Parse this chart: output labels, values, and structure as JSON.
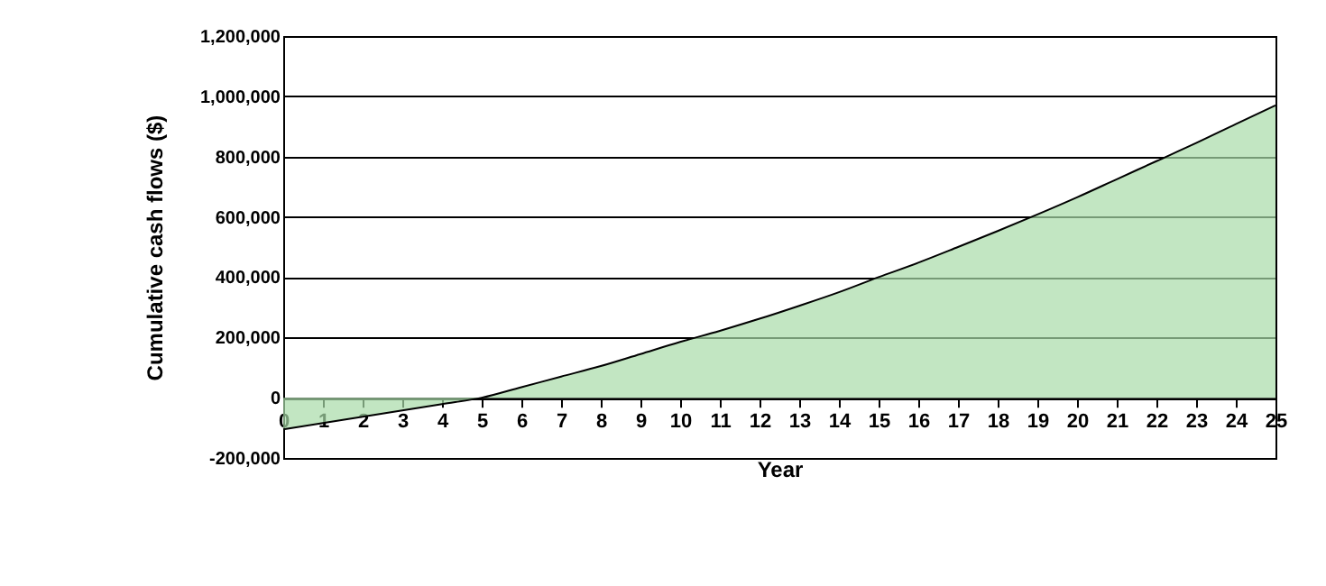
{
  "chart_data": {
    "type": "area",
    "xlabel": "Year",
    "ylabel": "Cumulative cash flows ($)",
    "x": [
      0,
      1,
      2,
      3,
      4,
      5,
      6,
      7,
      8,
      9,
      10,
      11,
      12,
      13,
      14,
      15,
      16,
      17,
      18,
      19,
      20,
      21,
      22,
      23,
      24,
      25
    ],
    "series": [
      {
        "color": "#a8dca8",
        "values": [
          -105000,
          -84000,
          -63000,
          -42000,
          -21000,
          0,
          35000,
          70000,
          105000,
          145000,
          185000,
          222000,
          262000,
          305000,
          350000,
          400000,
          448000,
          500000,
          553000,
          608000,
          665000,
          725000,
          785000,
          845000,
          908000,
          970000
        ]
      }
    ],
    "xlim": [
      0,
      25
    ],
    "xticks": [
      0,
      1,
      2,
      3,
      4,
      5,
      6,
      7,
      8,
      9,
      10,
      11,
      12,
      13,
      14,
      15,
      16,
      17,
      18,
      19,
      20,
      21,
      22,
      23,
      24,
      25
    ],
    "ylim": [
      -200000,
      1200000
    ],
    "yticks": [
      {
        "value": -200000,
        "label": "-200,000"
      },
      0,
      {
        "value": 200000,
        "label": "200,000"
      },
      {
        "value": 400000,
        "label": "400,000"
      },
      {
        "value": 600000,
        "label": "600,000"
      },
      {
        "value": 800000,
        "label": "800,000"
      },
      {
        "value": 1000000,
        "label": "1,000,000"
      },
      {
        "value": 1200000,
        "label": "1,200,000"
      }
    ],
    "grid": "y"
  }
}
